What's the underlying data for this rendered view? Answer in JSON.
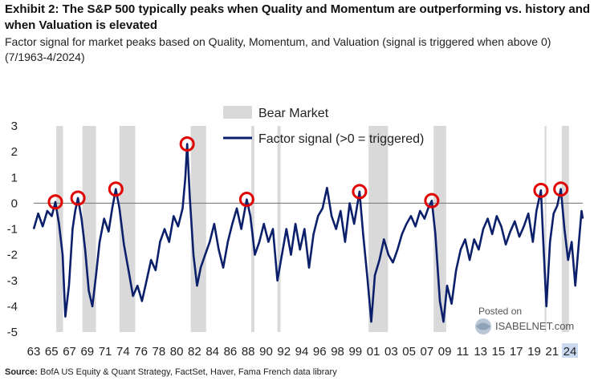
{
  "header": {
    "title": "Exhibit 2: The S&P 500 typically peaks when Quality and Momentum are outperforming vs. history and when Valuation is elevated",
    "subtitle": "Factor signal for market peaks based on Quality, Momentum, and Valuation (signal is triggered when above 0) (7/1963-4/2024)"
  },
  "footer": {
    "source_label": "Source:",
    "source_text": " BofA US Equity & Quant Strategy, FactSet, Haver, Fama French data library"
  },
  "watermark": {
    "line1": "Posted on",
    "line2": "ISABELNET.com"
  },
  "chart_data": {
    "type": "line",
    "title": "",
    "xlabel": "",
    "ylabel": "",
    "ylim": [
      -5,
      3
    ],
    "xlim": [
      1963.5,
      2024.33
    ],
    "grid": false,
    "legend_position": "top-center",
    "zero_line": true,
    "colors": {
      "series": "#0b1f6b",
      "bear_market": "#d9d9d9",
      "peak_marker": "#e00000",
      "zero_line": "#888888",
      "highlight_tick": "#c9daf0"
    },
    "y_ticks": [
      "3",
      "2",
      "1",
      "0",
      "-1",
      "-2",
      "-3",
      "-4",
      "-5"
    ],
    "x_ticks": [
      "63",
      "65",
      "67",
      "69",
      "71",
      "74",
      "76",
      "78",
      "80",
      "82",
      "84",
      "86",
      "88",
      "90",
      "92",
      "94",
      "96",
      "98",
      "99",
      "01",
      "03",
      "05",
      "07",
      "09",
      "11",
      "13",
      "15",
      "17",
      "19",
      "21",
      "24"
    ],
    "x_tick_values": [
      1963,
      1965,
      1967,
      1969,
      1971,
      1974,
      1976,
      1978,
      1980,
      1982,
      1984,
      1986,
      1988,
      1990,
      1992,
      1994,
      1996,
      1998,
      1999,
      2001,
      2003,
      2005,
      2007,
      2009,
      2011,
      2013,
      2015,
      2017,
      2019,
      2021,
      2024
    ],
    "highlighted_x_tick": "24",
    "legend": [
      {
        "label": "Bear Market",
        "kind": "band"
      },
      {
        "label": "Factor signal (>0 = triggered)",
        "kind": "line"
      }
    ],
    "bear_markets": [
      {
        "start": 1966.0,
        "end": 1966.75
      },
      {
        "start": 1968.9,
        "end": 1970.4
      },
      {
        "start": 1973.0,
        "end": 1974.75
      },
      {
        "start": 1980.9,
        "end": 1982.6
      },
      {
        "start": 1987.6,
        "end": 1987.95
      },
      {
        "start": 1990.5,
        "end": 1990.85
      },
      {
        "start": 2000.6,
        "end": 2002.75
      },
      {
        "start": 2007.8,
        "end": 2009.2
      },
      {
        "start": 2020.1,
        "end": 2020.3
      },
      {
        "start": 2022.0,
        "end": 2022.8
      }
    ],
    "peaks": [
      {
        "x": 1965.9,
        "y": 0.05
      },
      {
        "x": 1968.4,
        "y": 0.2
      },
      {
        "x": 1972.6,
        "y": 0.55
      },
      {
        "x": 1980.5,
        "y": 2.3
      },
      {
        "x": 1987.1,
        "y": 0.15
      },
      {
        "x": 1999.6,
        "y": 0.45
      },
      {
        "x": 2007.6,
        "y": 0.1
      },
      {
        "x": 2019.7,
        "y": 0.5
      },
      {
        "x": 2021.9,
        "y": 0.55
      }
    ],
    "series": [
      {
        "name": "Factor signal (>0 = triggered)",
        "points": [
          [
            1963.5,
            -1.0
          ],
          [
            1964.0,
            -0.4
          ],
          [
            1964.5,
            -0.9
          ],
          [
            1965.0,
            -0.3
          ],
          [
            1965.5,
            -0.5
          ],
          [
            1965.9,
            0.05
          ],
          [
            1966.3,
            -0.8
          ],
          [
            1966.7,
            -2.0
          ],
          [
            1967.0,
            -4.4
          ],
          [
            1967.4,
            -3.2
          ],
          [
            1967.8,
            -1.0
          ],
          [
            1968.1,
            -0.3
          ],
          [
            1968.4,
            0.2
          ],
          [
            1968.8,
            -0.6
          ],
          [
            1969.2,
            -1.8
          ],
          [
            1969.6,
            -3.4
          ],
          [
            1970.0,
            -4.0
          ],
          [
            1970.4,
            -2.8
          ],
          [
            1970.8,
            -1.5
          ],
          [
            1971.3,
            -0.6
          ],
          [
            1971.8,
            -1.1
          ],
          [
            1972.2,
            -0.2
          ],
          [
            1972.6,
            0.55
          ],
          [
            1973.0,
            -0.2
          ],
          [
            1973.5,
            -1.6
          ],
          [
            1974.0,
            -2.6
          ],
          [
            1974.5,
            -3.6
          ],
          [
            1975.0,
            -3.2
          ],
          [
            1975.5,
            -3.8
          ],
          [
            1976.0,
            -3.0
          ],
          [
            1976.5,
            -2.2
          ],
          [
            1977.0,
            -2.6
          ],
          [
            1977.5,
            -1.5
          ],
          [
            1978.0,
            -1.0
          ],
          [
            1978.5,
            -1.5
          ],
          [
            1979.0,
            -0.5
          ],
          [
            1979.5,
            -0.9
          ],
          [
            1980.0,
            -0.2
          ],
          [
            1980.3,
            1.0
          ],
          [
            1980.5,
            2.3
          ],
          [
            1980.8,
            0.2
          ],
          [
            1981.2,
            -2.0
          ],
          [
            1981.6,
            -3.2
          ],
          [
            1982.0,
            -2.5
          ],
          [
            1982.5,
            -2.0
          ],
          [
            1983.0,
            -1.5
          ],
          [
            1983.5,
            -0.8
          ],
          [
            1984.0,
            -1.8
          ],
          [
            1984.5,
            -2.5
          ],
          [
            1985.0,
            -1.5
          ],
          [
            1985.5,
            -0.8
          ],
          [
            1986.0,
            -0.2
          ],
          [
            1986.5,
            -1.0
          ],
          [
            1987.1,
            0.15
          ],
          [
            1987.5,
            -0.5
          ],
          [
            1988.0,
            -2.0
          ],
          [
            1988.5,
            -1.5
          ],
          [
            1989.0,
            -0.8
          ],
          [
            1989.5,
            -1.5
          ],
          [
            1990.0,
            -1.0
          ],
          [
            1990.5,
            -3.0
          ],
          [
            1991.0,
            -2.0
          ],
          [
            1991.5,
            -1.0
          ],
          [
            1992.0,
            -2.0
          ],
          [
            1992.5,
            -0.8
          ],
          [
            1993.0,
            -1.8
          ],
          [
            1993.5,
            -1.0
          ],
          [
            1994.0,
            -2.5
          ],
          [
            1994.5,
            -1.2
          ],
          [
            1995.0,
            -0.5
          ],
          [
            1995.5,
            -0.2
          ],
          [
            1996.0,
            0.6
          ],
          [
            1996.5,
            -0.5
          ],
          [
            1997.0,
            -1.0
          ],
          [
            1997.5,
            -0.3
          ],
          [
            1998.0,
            -1.5
          ],
          [
            1998.5,
            0.0
          ],
          [
            1999.0,
            -0.8
          ],
          [
            1999.6,
            0.45
          ],
          [
            2000.0,
            -1.2
          ],
          [
            2000.5,
            -3.0
          ],
          [
            2000.9,
            -4.6
          ],
          [
            2001.3,
            -2.8
          ],
          [
            2001.8,
            -2.2
          ],
          [
            2002.3,
            -1.4
          ],
          [
            2002.8,
            -2.0
          ],
          [
            2003.3,
            -2.3
          ],
          [
            2003.8,
            -1.8
          ],
          [
            2004.3,
            -1.2
          ],
          [
            2004.8,
            -0.8
          ],
          [
            2005.3,
            -0.5
          ],
          [
            2005.8,
            -0.9
          ],
          [
            2006.3,
            -0.3
          ],
          [
            2006.8,
            -0.6
          ],
          [
            2007.2,
            -0.2
          ],
          [
            2007.6,
            0.1
          ],
          [
            2008.0,
            -1.2
          ],
          [
            2008.5,
            -3.8
          ],
          [
            2008.9,
            -4.6
          ],
          [
            2009.3,
            -3.2
          ],
          [
            2009.8,
            -3.9
          ],
          [
            2010.3,
            -2.6
          ],
          [
            2010.8,
            -1.8
          ],
          [
            2011.3,
            -1.4
          ],
          [
            2011.8,
            -2.2
          ],
          [
            2012.3,
            -1.4
          ],
          [
            2012.8,
            -1.8
          ],
          [
            2013.3,
            -1.0
          ],
          [
            2013.8,
            -0.6
          ],
          [
            2014.3,
            -1.2
          ],
          [
            2014.8,
            -0.5
          ],
          [
            2015.3,
            -0.9
          ],
          [
            2015.8,
            -1.6
          ],
          [
            2016.3,
            -1.1
          ],
          [
            2016.8,
            -0.7
          ],
          [
            2017.3,
            -1.3
          ],
          [
            2017.8,
            -0.9
          ],
          [
            2018.3,
            -0.4
          ],
          [
            2018.8,
            -1.5
          ],
          [
            2019.2,
            -0.3
          ],
          [
            2019.7,
            0.5
          ],
          [
            2020.0,
            -1.8
          ],
          [
            2020.3,
            -4.0
          ],
          [
            2020.7,
            -1.5
          ],
          [
            2021.1,
            -0.4
          ],
          [
            2021.5,
            -0.1
          ],
          [
            2021.9,
            0.55
          ],
          [
            2022.3,
            -1.0
          ],
          [
            2022.7,
            -2.2
          ],
          [
            2023.1,
            -1.5
          ],
          [
            2023.5,
            -3.2
          ],
          [
            2023.9,
            -1.5
          ],
          [
            2024.2,
            -0.3
          ],
          [
            2024.33,
            -0.6
          ]
        ]
      }
    ]
  }
}
